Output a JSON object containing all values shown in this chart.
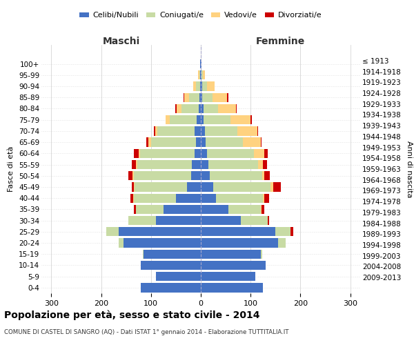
{
  "age_groups": [
    "0-4",
    "5-9",
    "10-14",
    "15-19",
    "20-24",
    "25-29",
    "30-34",
    "35-39",
    "40-44",
    "45-49",
    "50-54",
    "55-59",
    "60-64",
    "65-69",
    "70-74",
    "75-79",
    "80-84",
    "85-89",
    "90-94",
    "95-99",
    "100+"
  ],
  "birth_years": [
    "2009-2013",
    "2004-2008",
    "1999-2003",
    "1994-1998",
    "1989-1993",
    "1984-1988",
    "1979-1983",
    "1974-1978",
    "1969-1973",
    "1964-1968",
    "1959-1963",
    "1954-1958",
    "1949-1953",
    "1944-1948",
    "1939-1943",
    "1934-1938",
    "1929-1933",
    "1924-1928",
    "1919-1923",
    "1914-1918",
    "≤ 1913"
  ],
  "maschi": {
    "celibi": [
      120,
      90,
      120,
      115,
      155,
      165,
      90,
      75,
      50,
      28,
      20,
      18,
      12,
      10,
      12,
      8,
      4,
      3,
      2,
      1,
      1
    ],
    "coniugati": [
      0,
      0,
      0,
      2,
      10,
      25,
      55,
      55,
      85,
      105,
      115,
      110,
      110,
      90,
      75,
      55,
      35,
      20,
      8,
      2,
      0
    ],
    "vedovi": [
      0,
      0,
      0,
      0,
      0,
      0,
      0,
      0,
      1,
      1,
      2,
      2,
      2,
      5,
      5,
      8,
      10,
      10,
      5,
      2,
      0
    ],
    "divorziati": [
      0,
      0,
      0,
      0,
      0,
      0,
      0,
      5,
      5,
      5,
      8,
      8,
      10,
      5,
      2,
      0,
      2,
      2,
      0,
      0,
      0
    ]
  },
  "femmine": {
    "nubili": [
      125,
      110,
      130,
      120,
      155,
      150,
      80,
      55,
      30,
      25,
      18,
      15,
      12,
      10,
      8,
      5,
      5,
      3,
      3,
      1,
      1
    ],
    "coniugate": [
      0,
      0,
      0,
      3,
      15,
      30,
      55,
      65,
      95,
      115,
      105,
      100,
      95,
      75,
      65,
      55,
      30,
      20,
      10,
      3,
      0
    ],
    "vedove": [
      0,
      0,
      0,
      0,
      0,
      0,
      0,
      2,
      2,
      5,
      5,
      10,
      20,
      35,
      40,
      40,
      35,
      30,
      15,
      5,
      1
    ],
    "divorziate": [
      0,
      0,
      0,
      0,
      0,
      5,
      2,
      5,
      10,
      15,
      10,
      8,
      8,
      2,
      2,
      2,
      2,
      2,
      0,
      0,
      0
    ]
  },
  "colors": {
    "celibi": "#4472C4",
    "coniugati": "#c8dba4",
    "vedovi": "#ffd280",
    "divorziati": "#cc0000"
  },
  "xlim": 320,
  "title": "Popolazione per età, sesso e stato civile - 2014",
  "subtitle": "COMUNE DI CASTEL DI SANGRO (AQ) - Dati ISTAT 1° gennaio 2014 - Elaborazione TUTTITALIA.IT",
  "ylabel": "Fasce di età",
  "ylabel_right": "Anni di nascita",
  "xticks": [
    -300,
    -200,
    -100,
    0,
    100,
    200,
    300
  ],
  "xtick_labels": [
    "300",
    "200",
    "100",
    "0",
    "100",
    "200",
    "300"
  ]
}
